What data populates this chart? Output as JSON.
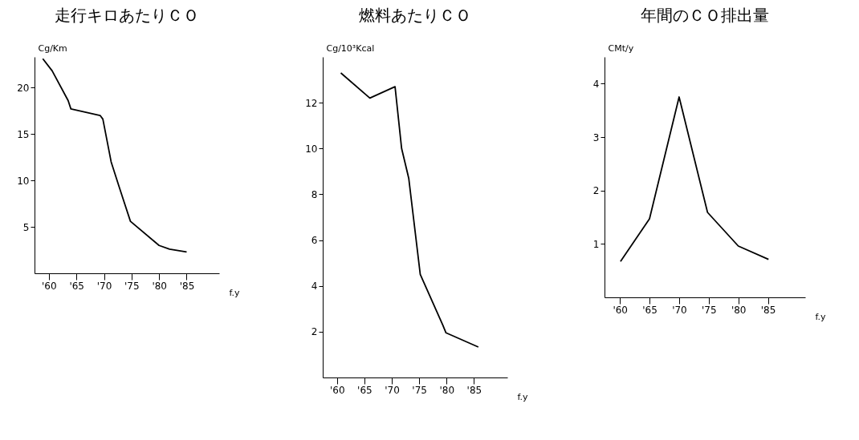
{
  "chart_data": [
    {
      "type": "line",
      "title": "走行キロあたりＣＯ",
      "ylabel": "Cg/Km",
      "xlabel": "f.y",
      "grid": false,
      "x": [
        1958.9,
        1960.6,
        1963.5,
        1964,
        1969.3,
        1969.8,
        1971.3,
        1972.7,
        1974.8,
        1980,
        1981.9,
        1985
      ],
      "series": [
        {
          "color": "#000000",
          "values": [
            23.1,
            21.8,
            18.6,
            17.7,
            17.0,
            16.6,
            12.0,
            9.4,
            5.6,
            3.0,
            2.6,
            2.3
          ]
        }
      ],
      "xlim": [
        1957.4,
        1990.9
      ],
      "ylim": [
        0,
        23.3
      ],
      "xticks": [
        {
          "value": 1960,
          "label": "'60"
        },
        {
          "value": 1965,
          "label": "'65"
        },
        {
          "value": 1970,
          "label": "'70"
        },
        {
          "value": 1975,
          "label": "'75"
        },
        {
          "value": 1980,
          "label": "'80"
        },
        {
          "value": 1985,
          "label": "'85"
        }
      ],
      "yticks": [
        5,
        10,
        15,
        20
      ]
    },
    {
      "type": "line",
      "title": "燃料あたりＣＯ",
      "ylabel": "Cg/10³Kcal",
      "xlabel": "f.y",
      "grid": false,
      "x": [
        1960.7,
        1966,
        1970.6,
        1971.8,
        1973.1,
        1975.2,
        1979.3,
        1979.9,
        1985.8
      ],
      "series": [
        {
          "color": "#000000",
          "values": [
            13.3,
            12.2,
            12.7,
            10.0,
            8.7,
            4.5,
            2.3,
            1.95,
            1.33
          ]
        }
      ],
      "xlim": [
        1957.4,
        1991.1
      ],
      "ylim": [
        0,
        14
      ],
      "xticks": [
        {
          "value": 1960,
          "label": "'60"
        },
        {
          "value": 1965,
          "label": "'65"
        },
        {
          "value": 1970,
          "label": "'70"
        },
        {
          "value": 1975,
          "label": "'75"
        },
        {
          "value": 1980,
          "label": "'80"
        },
        {
          "value": 1985,
          "label": "'85"
        }
      ],
      "yticks": [
        2,
        4,
        6,
        8,
        10,
        12
      ]
    },
    {
      "type": "line",
      "title": "年間のＣＯ排出量",
      "ylabel": "CMt/y",
      "xlabel": "f.y",
      "grid": false,
      "x": [
        1960.1,
        1965,
        1970,
        1974.8,
        1980,
        1985.1
      ],
      "series": [
        {
          "color": "#000000",
          "values": [
            0.67,
            1.47,
            3.75,
            1.59,
            0.96,
            0.71
          ]
        }
      ],
      "xlim": [
        1957.4,
        1991.3
      ],
      "ylim": [
        0,
        4.5
      ],
      "xticks": [
        {
          "value": 1960,
          "label": "'60"
        },
        {
          "value": 1965,
          "label": "'65"
        },
        {
          "value": 1970,
          "label": "'70"
        },
        {
          "value": 1975,
          "label": "'75"
        },
        {
          "value": 1980,
          "label": "'80"
        },
        {
          "value": 1985,
          "label": "'85"
        }
      ],
      "yticks": [
        1,
        2,
        3,
        4
      ]
    }
  ]
}
